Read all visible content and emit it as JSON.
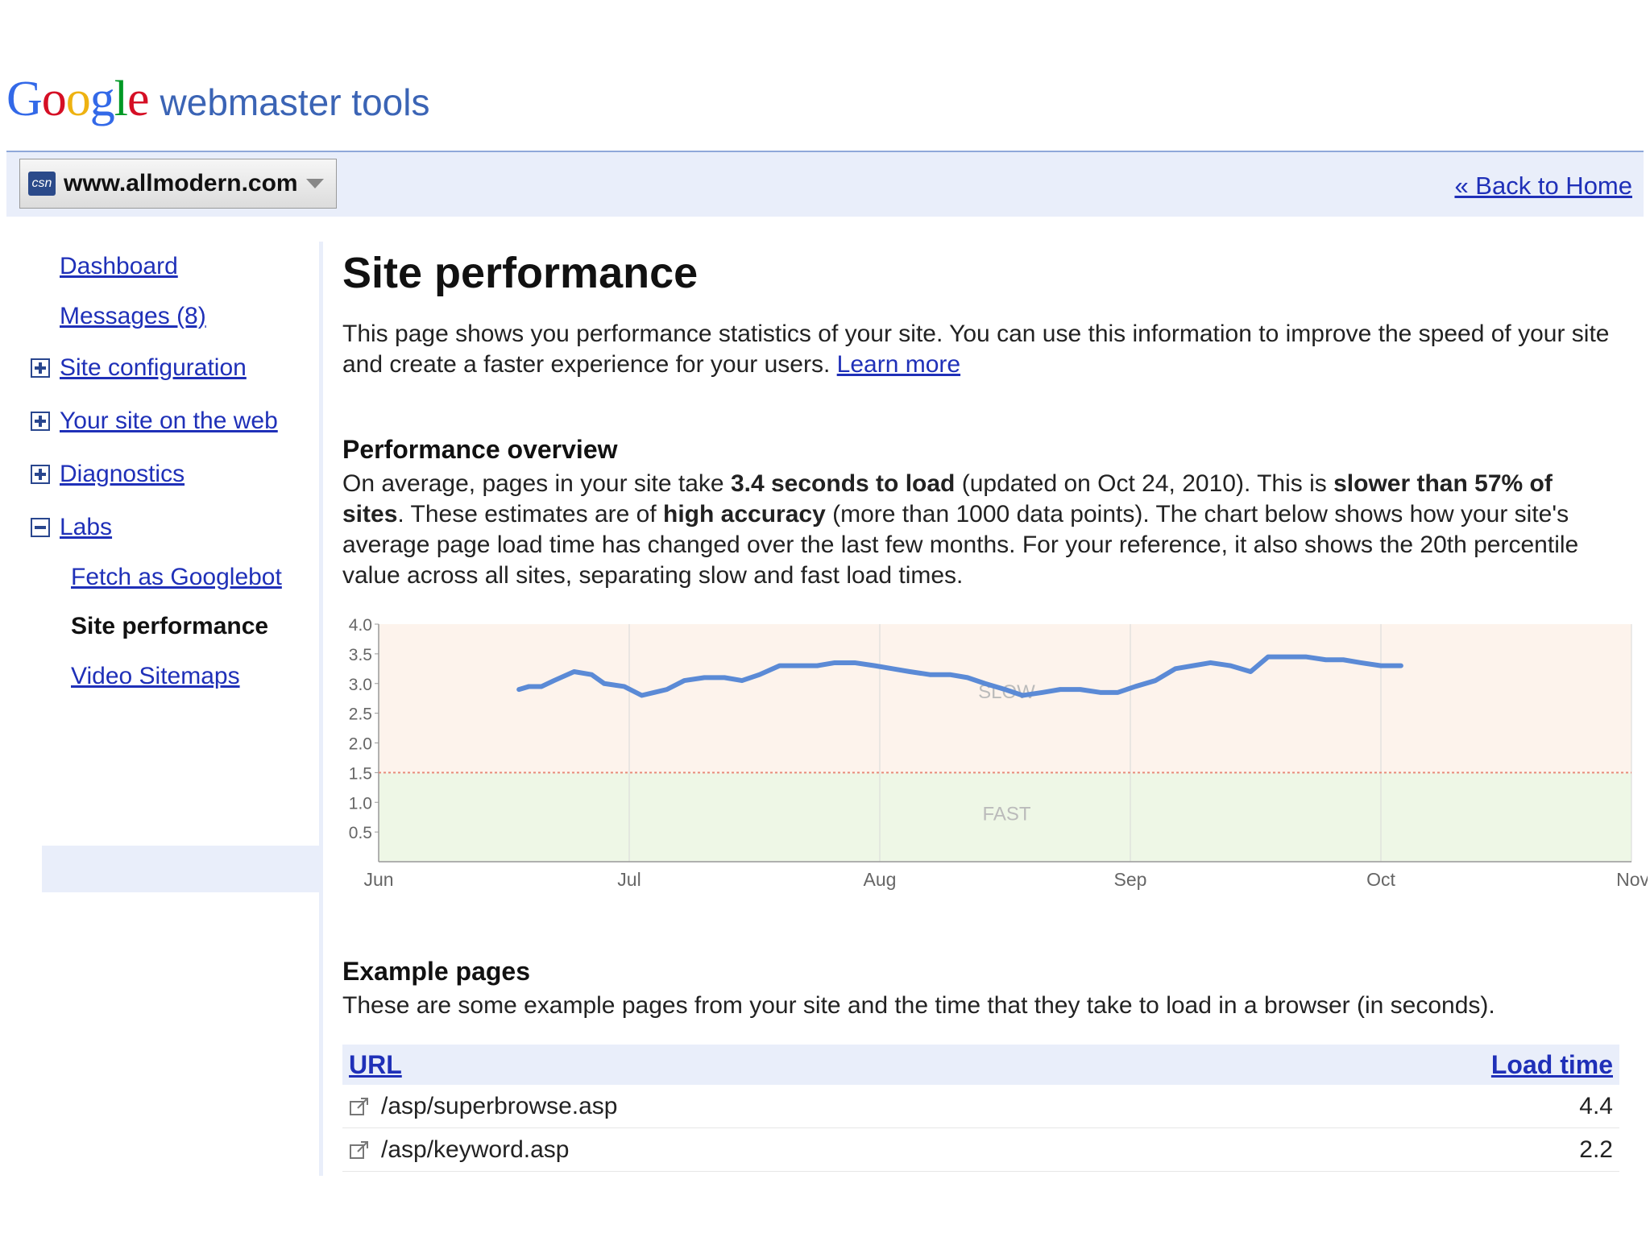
{
  "header": {
    "logo_text": "Google",
    "product": "webmaster tools",
    "site_icon_text": "csn",
    "site": "www.allmodern.com",
    "back_link": "« Back to Home"
  },
  "sidebar": {
    "items": [
      {
        "label": "Dashboard",
        "icon": "none"
      },
      {
        "label": "Messages (8)",
        "icon": "none"
      },
      {
        "label": "Site configuration",
        "icon": "expand-plus-icon"
      },
      {
        "label": "Your site on the web",
        "icon": "expand-plus-icon"
      },
      {
        "label": "Diagnostics",
        "icon": "expand-plus-icon"
      },
      {
        "label": "Labs",
        "icon": "collapse-minus-icon"
      }
    ],
    "sub_items": [
      {
        "label": "Fetch as Googlebot"
      },
      {
        "label": "Site performance",
        "current": true
      },
      {
        "label": "Video Sitemaps"
      }
    ]
  },
  "main": {
    "title": "Site performance",
    "intro": "This page shows you performance statistics of your site. You can use this information to improve the speed of your site and create a faster experience for your users.",
    "learn_more": "Learn more",
    "overview_heading": "Performance overview",
    "overview_p1": "On average, pages in your site take ",
    "overview_b1": "3.4 seconds to load",
    "overview_p2": " (updated on Oct 24, 2010). This is ",
    "overview_b2": "slower than 57% of sites",
    "overview_p3": ". These estimates are of ",
    "overview_b3": "high accuracy",
    "overview_p4": " (more than 1000 data points). The chart below shows how your site's average page load time has changed over the last few months. For your reference, it also shows the 20th percentile value across all sites, separating slow and fast load times.",
    "examples_heading": "Example pages",
    "examples_desc": "These are some example pages from your site and the time that they take to load in a browser (in seconds)."
  },
  "table": {
    "col_url": "URL",
    "col_load": "Load time",
    "rows": [
      {
        "url": "/asp/superbrowse.asp",
        "load": "4.4"
      },
      {
        "url": "/asp/keyword.asp",
        "load": "2.2"
      }
    ]
  },
  "colors": {
    "slow_bg": "#fdf3ec",
    "fast_bg": "#eef7e6",
    "line": "#5b8ad6",
    "threshold": "#e88a7a"
  },
  "chart_data": {
    "type": "line",
    "x_ticks": [
      "Jun",
      "Jul",
      "Aug",
      "Sep",
      "Oct",
      "Nov"
    ],
    "y_ticks": [
      "0.5",
      "1.0",
      "1.5",
      "2.0",
      "2.5",
      "3.0",
      "3.5",
      "4.0"
    ],
    "ylim": [
      0,
      4.0
    ],
    "regions": [
      {
        "label": "SLOW",
        "from": 1.5,
        "to": 4.0
      },
      {
        "label": "FAST",
        "from": 0,
        "to": 1.5
      }
    ],
    "threshold": 1.5,
    "series": [
      {
        "x": [
          0.56,
          0.6,
          0.65,
          0.7,
          0.78,
          0.85,
          0.9,
          0.98,
          1.05,
          1.1,
          1.15,
          1.22,
          1.3,
          1.38,
          1.45,
          1.52,
          1.6,
          1.68,
          1.75,
          1.82,
          1.9,
          1.98,
          2.05,
          2.12,
          2.2,
          2.28,
          2.35,
          2.42,
          2.5,
          2.57,
          2.65,
          2.72,
          2.8,
          2.88,
          2.95,
          3.02,
          3.1,
          3.18,
          3.25,
          3.32,
          3.4,
          3.48,
          3.55,
          3.62,
          3.7,
          3.78,
          3.85,
          3.92,
          4.0,
          4.08
        ],
        "y": [
          2.9,
          2.95,
          2.95,
          3.05,
          3.2,
          3.15,
          3.0,
          2.95,
          2.8,
          2.85,
          2.9,
          3.05,
          3.1,
          3.1,
          3.05,
          3.15,
          3.3,
          3.3,
          3.3,
          3.35,
          3.35,
          3.3,
          3.25,
          3.2,
          3.15,
          3.15,
          3.1,
          3.0,
          2.9,
          2.8,
          2.85,
          2.9,
          2.9,
          2.85,
          2.85,
          2.95,
          3.05,
          3.25,
          3.3,
          3.35,
          3.3,
          3.2,
          3.45,
          3.45,
          3.45,
          3.4,
          3.4,
          3.35,
          3.3,
          3.3
        ]
      }
    ]
  }
}
